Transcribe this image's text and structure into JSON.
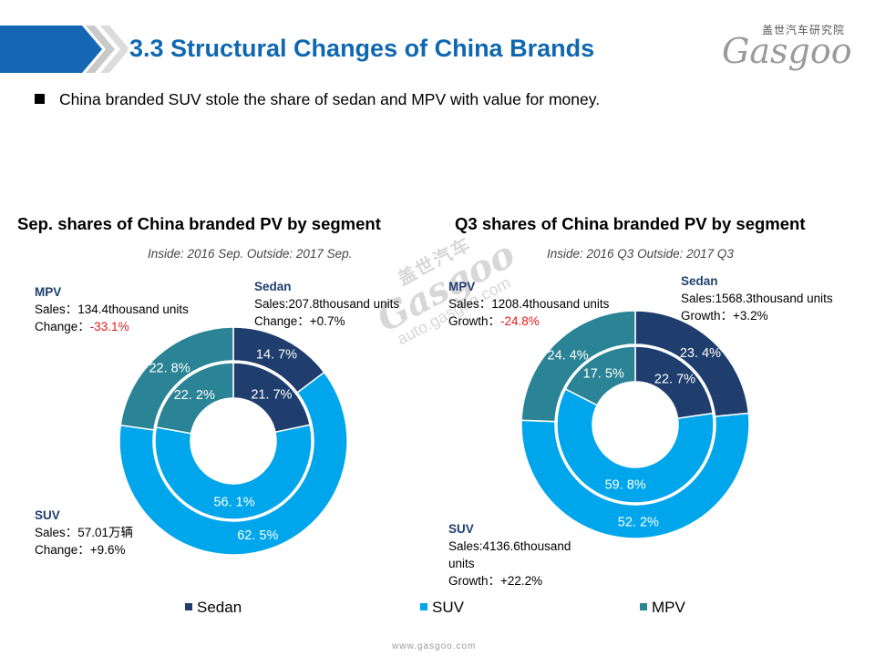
{
  "slide": {
    "title": "3.3 Structural Changes of China Brands",
    "bullet": "China branded SUV stole the share of sedan and MPV with value for money.",
    "logo_cn": "盖世汽车研究院",
    "logo_text": "Gasgoo",
    "watermark_cn": "盖世汽车",
    "watermark_logo": "Gasgoo",
    "watermark_url": "auto.gasgoo.com",
    "footer_url": "www.gasgoo.com"
  },
  "colors": {
    "Sedan": "#1f3e6e",
    "SUV": "#00a6eb",
    "MPV": "#2a8495",
    "title": "#0e67b0"
  },
  "legend": [
    "Sedan",
    "SUV",
    "MPV"
  ],
  "chart_data": [
    {
      "type": "donut",
      "title": "Sep. shares of China branded PV by segment",
      "subtitle": "Inside: 2016 Sep.  Outside: 2017 Sep.",
      "categories": [
        "Sedan",
        "SUV",
        "MPV"
      ],
      "series": [
        {
          "name": "Inside: 2016 Sep.",
          "values": [
            21.7,
            56.1,
            22.2
          ],
          "labels": [
            "21. 7%",
            "56. 1%",
            "22. 2%"
          ]
        },
        {
          "name": "Outside: 2017 Sep.",
          "values": [
            14.7,
            62.5,
            22.8
          ],
          "labels": [
            "14. 7%",
            "62. 5%",
            "22. 8%"
          ]
        }
      ],
      "annotations": {
        "Sedan": {
          "name": "Sedan",
          "sales": "Sales:207.8thousand  units",
          "change_label": "Change：",
          "change": "+0.7%"
        },
        "MPV": {
          "name": "MPV",
          "sales": "Sales：134.4thousand  units",
          "change_label": "Change：",
          "change": "-33.1%"
        },
        "SUV": {
          "name": "SUV",
          "sales": "Sales：57.01万辆",
          "change_label": "Change：",
          "change": "+9.6%"
        }
      }
    },
    {
      "type": "donut",
      "title": "Q3 shares of China branded PV by segment",
      "subtitle": "Inside: 2016 Q3  Outside: 2017 Q3",
      "categories": [
        "Sedan",
        "SUV",
        "MPV"
      ],
      "series": [
        {
          "name": "Inside: 2016 Q3",
          "values": [
            22.7,
            59.8,
            17.5
          ],
          "labels": [
            "22. 7%",
            "59. 8%",
            "17. 5%"
          ]
        },
        {
          "name": "Outside: 2017 Q3",
          "values": [
            23.4,
            52.2,
            24.4
          ],
          "labels": [
            "23. 4%",
            "52. 2%",
            "24. 4%"
          ]
        }
      ],
      "annotations": {
        "Sedan": {
          "name": "Sedan",
          "sales": "Sales:1568.3thousand  units",
          "change_label": "Growth：",
          "change": "+3.2%"
        },
        "MPV": {
          "name": "MPV",
          "sales": "Sales：1208.4thousand  units",
          "change_label": "Growth：",
          "change": "-24.8%"
        },
        "SUV": {
          "name": "SUV",
          "sales": "Sales:4136.6thousand",
          "sales2": "units",
          "change_label": "Growth：",
          "change": "+22.2%"
        }
      }
    }
  ]
}
